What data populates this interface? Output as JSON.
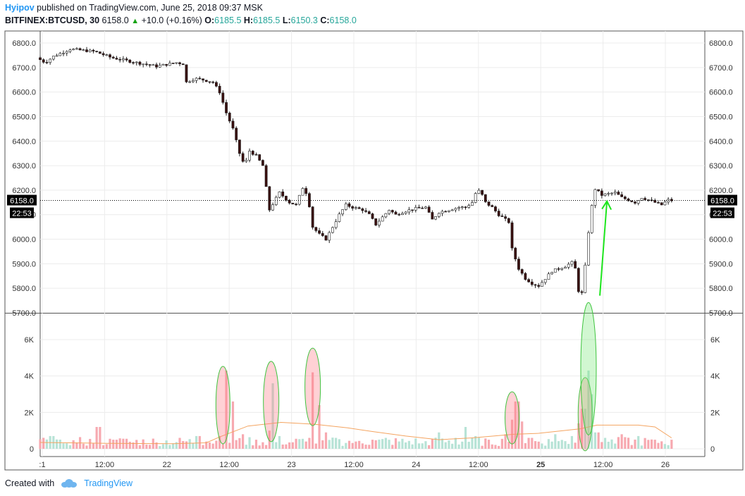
{
  "header": {
    "author": "Hyipov",
    "published_text": " published on TradingView.com, June 25, 2018 09:37 MSK",
    "symbol": "BITFINEX:BTCUSD, 30",
    "last": "6158.0",
    "change_arrow": "▲",
    "change": "+10.0 (+0.16%)",
    "o_label": "O:",
    "o_value": "6185.5",
    "h_label": "H:",
    "h_value": "6185.5",
    "l_label": "L:",
    "l_value": "6150.3",
    "c_label": "C:",
    "c_value": "6158.0"
  },
  "footer": {
    "created_with": "Created with",
    "brand": "TradingView"
  },
  "chart_data": [
    {
      "type": "candlestick",
      "ylim": [
        5700,
        6850
      ],
      "y_ticks": [
        "6800.0",
        "6700.0",
        "6600.0",
        "6500.0",
        "6400.0",
        "6300.0",
        "6200.0",
        "6100.0",
        "6000.0",
        "5900.0",
        "5800.0",
        "5700.0"
      ],
      "last_price": "6158.0",
      "last_price_time": "22:53",
      "x_ticks": [
        ":1",
        "12:00",
        "22",
        "12:00",
        "23",
        "12:00",
        "24",
        "12:00",
        "25",
        "12:00",
        "26"
      ],
      "x_ticks_bold": [
        "25"
      ],
      "close_path": [
        [
          0,
          6740
        ],
        [
          5,
          6720
        ],
        [
          10,
          6745
        ],
        [
          20,
          6775
        ],
        [
          35,
          6765
        ],
        [
          45,
          6740
        ],
        [
          60,
          6720
        ],
        [
          72,
          6705
        ],
        [
          84,
          6720
        ],
        [
          88,
          6715
        ],
        [
          90,
          6640
        ],
        [
          95,
          6655
        ],
        [
          100,
          6650
        ],
        [
          106,
          6640
        ],
        [
          110,
          6600
        ],
        [
          114,
          6515
        ],
        [
          118,
          6450
        ],
        [
          122,
          6350
        ],
        [
          125,
          6300
        ],
        [
          128,
          6360
        ],
        [
          132,
          6340
        ],
        [
          136,
          6300
        ],
        [
          140,
          6120
        ],
        [
          146,
          6190
        ],
        [
          152,
          6150
        ],
        [
          156,
          6140
        ],
        [
          160,
          6210
        ],
        [
          163,
          6180
        ],
        [
          166,
          6050
        ],
        [
          170,
          6020
        ],
        [
          174,
          6000
        ],
        [
          178,
          6050
        ],
        [
          182,
          6100
        ],
        [
          186,
          6140
        ],
        [
          190,
          6130
        ],
        [
          196,
          6120
        ],
        [
          200,
          6100
        ],
        [
          204,
          6060
        ],
        [
          208,
          6090
        ],
        [
          212,
          6120
        ],
        [
          216,
          6100
        ],
        [
          222,
          6115
        ],
        [
          228,
          6125
        ],
        [
          234,
          6130
        ],
        [
          238,
          6080
        ],
        [
          242,
          6110
        ],
        [
          248,
          6120
        ],
        [
          254,
          6130
        ],
        [
          258,
          6130
        ],
        [
          262,
          6150
        ],
        [
          265,
          6205
        ],
        [
          268,
          6180
        ],
        [
          270,
          6150
        ],
        [
          274,
          6130
        ],
        [
          278,
          6100
        ],
        [
          282,
          6080
        ],
        [
          284,
          6070
        ],
        [
          286,
          5960
        ],
        [
          290,
          5880
        ],
        [
          294,
          5840
        ],
        [
          298,
          5820
        ],
        [
          302,
          5810
        ],
        [
          306,
          5840
        ],
        [
          310,
          5870
        ],
        [
          314,
          5880
        ],
        [
          318,
          5890
        ],
        [
          322,
          5905
        ],
        [
          324,
          5880
        ],
        [
          326,
          5790
        ],
        [
          328,
          5780
        ],
        [
          330,
          5890
        ],
        [
          333,
          6100
        ],
        [
          336,
          6205
        ],
        [
          340,
          6180
        ],
        [
          344,
          6185
        ],
        [
          348,
          6190
        ],
        [
          352,
          6170
        ],
        [
          356,
          6160
        ],
        [
          360,
          6150
        ],
        [
          364,
          6170
        ],
        [
          368,
          6160
        ],
        [
          372,
          6150
        ],
        [
          376,
          6140
        ],
        [
          380,
          6160
        ],
        [
          382,
          6158
        ]
      ]
    },
    {
      "type": "bar",
      "name": "Volume",
      "ylim": [
        0,
        7000
      ],
      "y_ticks": [
        "6K",
        "4K",
        "2K",
        "0"
      ],
      "volumes": [
        [
          7,
          700
        ],
        [
          15,
          300
        ],
        [
          22,
          350
        ],
        [
          35,
          1200
        ],
        [
          45,
          500
        ],
        [
          56,
          350
        ],
        [
          70,
          350
        ],
        [
          80,
          300
        ],
        [
          95,
          700
        ],
        [
          100,
          400
        ],
        [
          108,
          700
        ],
        [
          112,
          4300
        ],
        [
          116,
          2600
        ],
        [
          122,
          800
        ],
        [
          130,
          500
        ],
        [
          138,
          1000
        ],
        [
          140,
          3600
        ],
        [
          144,
          700
        ],
        [
          150,
          350
        ],
        [
          160,
          400
        ],
        [
          162,
          600
        ],
        [
          164,
          4200
        ],
        [
          168,
          2400
        ],
        [
          172,
          900
        ],
        [
          178,
          600
        ],
        [
          190,
          400
        ],
        [
          200,
          500
        ],
        [
          208,
          600
        ],
        [
          220,
          350
        ],
        [
          230,
          300
        ],
        [
          240,
          900
        ],
        [
          250,
          600
        ],
        [
          256,
          1200
        ],
        [
          262,
          700
        ],
        [
          270,
          500
        ],
        [
          280,
          800
        ],
        [
          285,
          1600
        ],
        [
          287,
          2600
        ],
        [
          290,
          1500
        ],
        [
          295,
          600
        ],
        [
          310,
          800
        ],
        [
          320,
          700
        ],
        [
          325,
          1400
        ],
        [
          327,
          2200
        ],
        [
          330,
          4300
        ],
        [
          332,
          3000
        ],
        [
          335,
          900
        ],
        [
          340,
          600
        ],
        [
          350,
          800
        ],
        [
          360,
          700
        ],
        [
          370,
          500
        ],
        [
          380,
          500
        ]
      ],
      "average_line": [
        [
          0,
          350
        ],
        [
          40,
          300
        ],
        [
          80,
          280
        ],
        [
          100,
          330
        ],
        [
          108,
          650
        ],
        [
          125,
          1250
        ],
        [
          145,
          1450
        ],
        [
          165,
          1350
        ],
        [
          185,
          1150
        ],
        [
          200,
          950
        ],
        [
          220,
          700
        ],
        [
          240,
          500
        ],
        [
          260,
          600
        ],
        [
          285,
          800
        ],
        [
          300,
          850
        ],
        [
          325,
          1100
        ],
        [
          335,
          1300
        ],
        [
          360,
          1300
        ],
        [
          370,
          1200
        ],
        [
          380,
          600
        ]
      ],
      "highlight_ellipses": [
        {
          "center": [
            110,
            2400
          ],
          "color": "#ff7b86"
        },
        {
          "center": [
            139,
            2600
          ],
          "color": "#ff7b86"
        },
        {
          "center": [
            164,
            3400
          ],
          "color": "#ff7b86"
        },
        {
          "center": [
            284,
            1700
          ],
          "color": "#ff7b86"
        },
        {
          "center": [
            328,
            1900
          ],
          "color": "#ff7b86"
        },
        {
          "center": [
            330,
            4400
          ],
          "color": "#7ae77a"
        }
      ],
      "annotation_arrow": {
        "from": [
          333,
          5770
        ],
        "to": [
          336,
          6155
        ],
        "color": "#1de51d"
      }
    }
  ]
}
